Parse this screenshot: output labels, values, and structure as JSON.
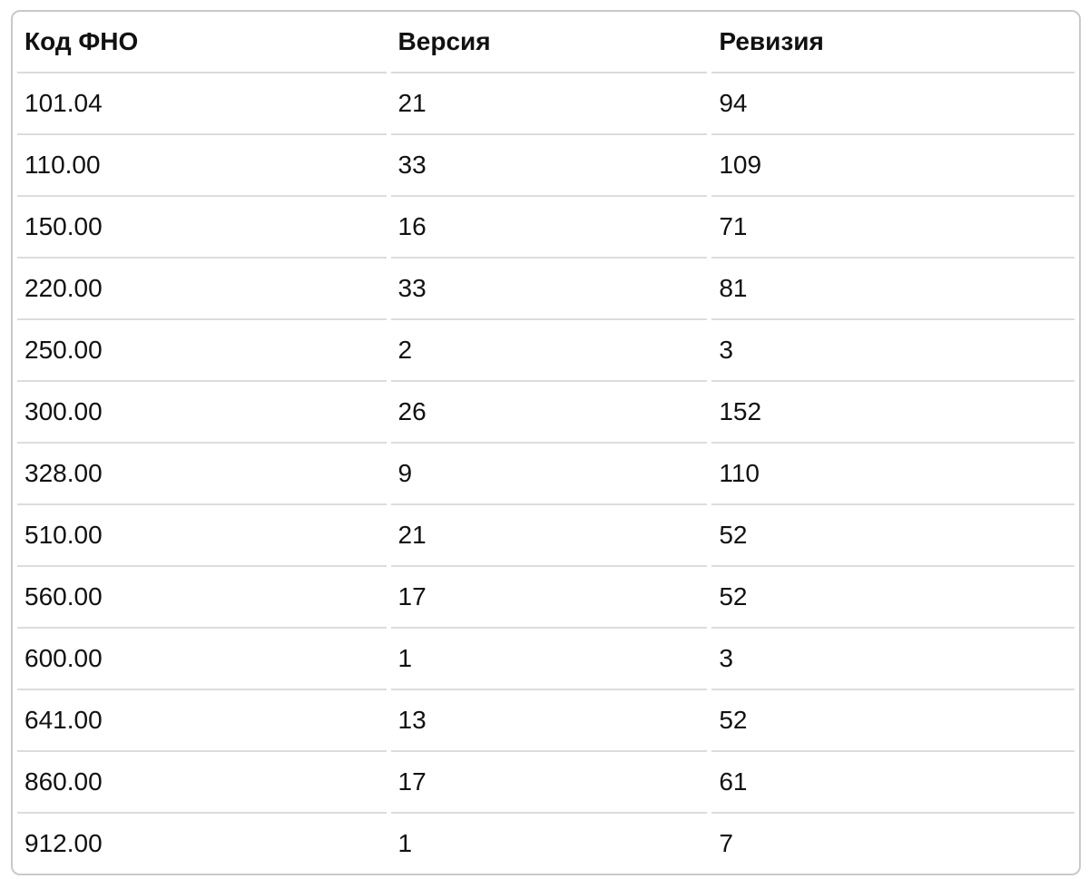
{
  "colors": {
    "background": "#ffffff",
    "card_border": "#c9c9c9",
    "row_separator": "#dcdcdc",
    "text": "#111111"
  },
  "table": {
    "columns": [
      {
        "key": "code",
        "label": "Код ФНО"
      },
      {
        "key": "version",
        "label": "Версия"
      },
      {
        "key": "revision",
        "label": "Ревизия"
      }
    ],
    "rows": [
      [
        "101.04",
        "21",
        "94"
      ],
      [
        "110.00",
        "33",
        "109"
      ],
      [
        "150.00",
        "16",
        "71"
      ],
      [
        "220.00",
        "33",
        "81"
      ],
      [
        "250.00",
        "2",
        "3"
      ],
      [
        "300.00",
        "26",
        "152"
      ],
      [
        "328.00",
        "9",
        "110"
      ],
      [
        "510.00",
        "21",
        "52"
      ],
      [
        "560.00",
        "17",
        "52"
      ],
      [
        "600.00",
        "1",
        "3"
      ],
      [
        "641.00",
        "13",
        "52"
      ],
      [
        "860.00",
        "17",
        "61"
      ],
      [
        "912.00",
        "1",
        "7"
      ]
    ]
  }
}
